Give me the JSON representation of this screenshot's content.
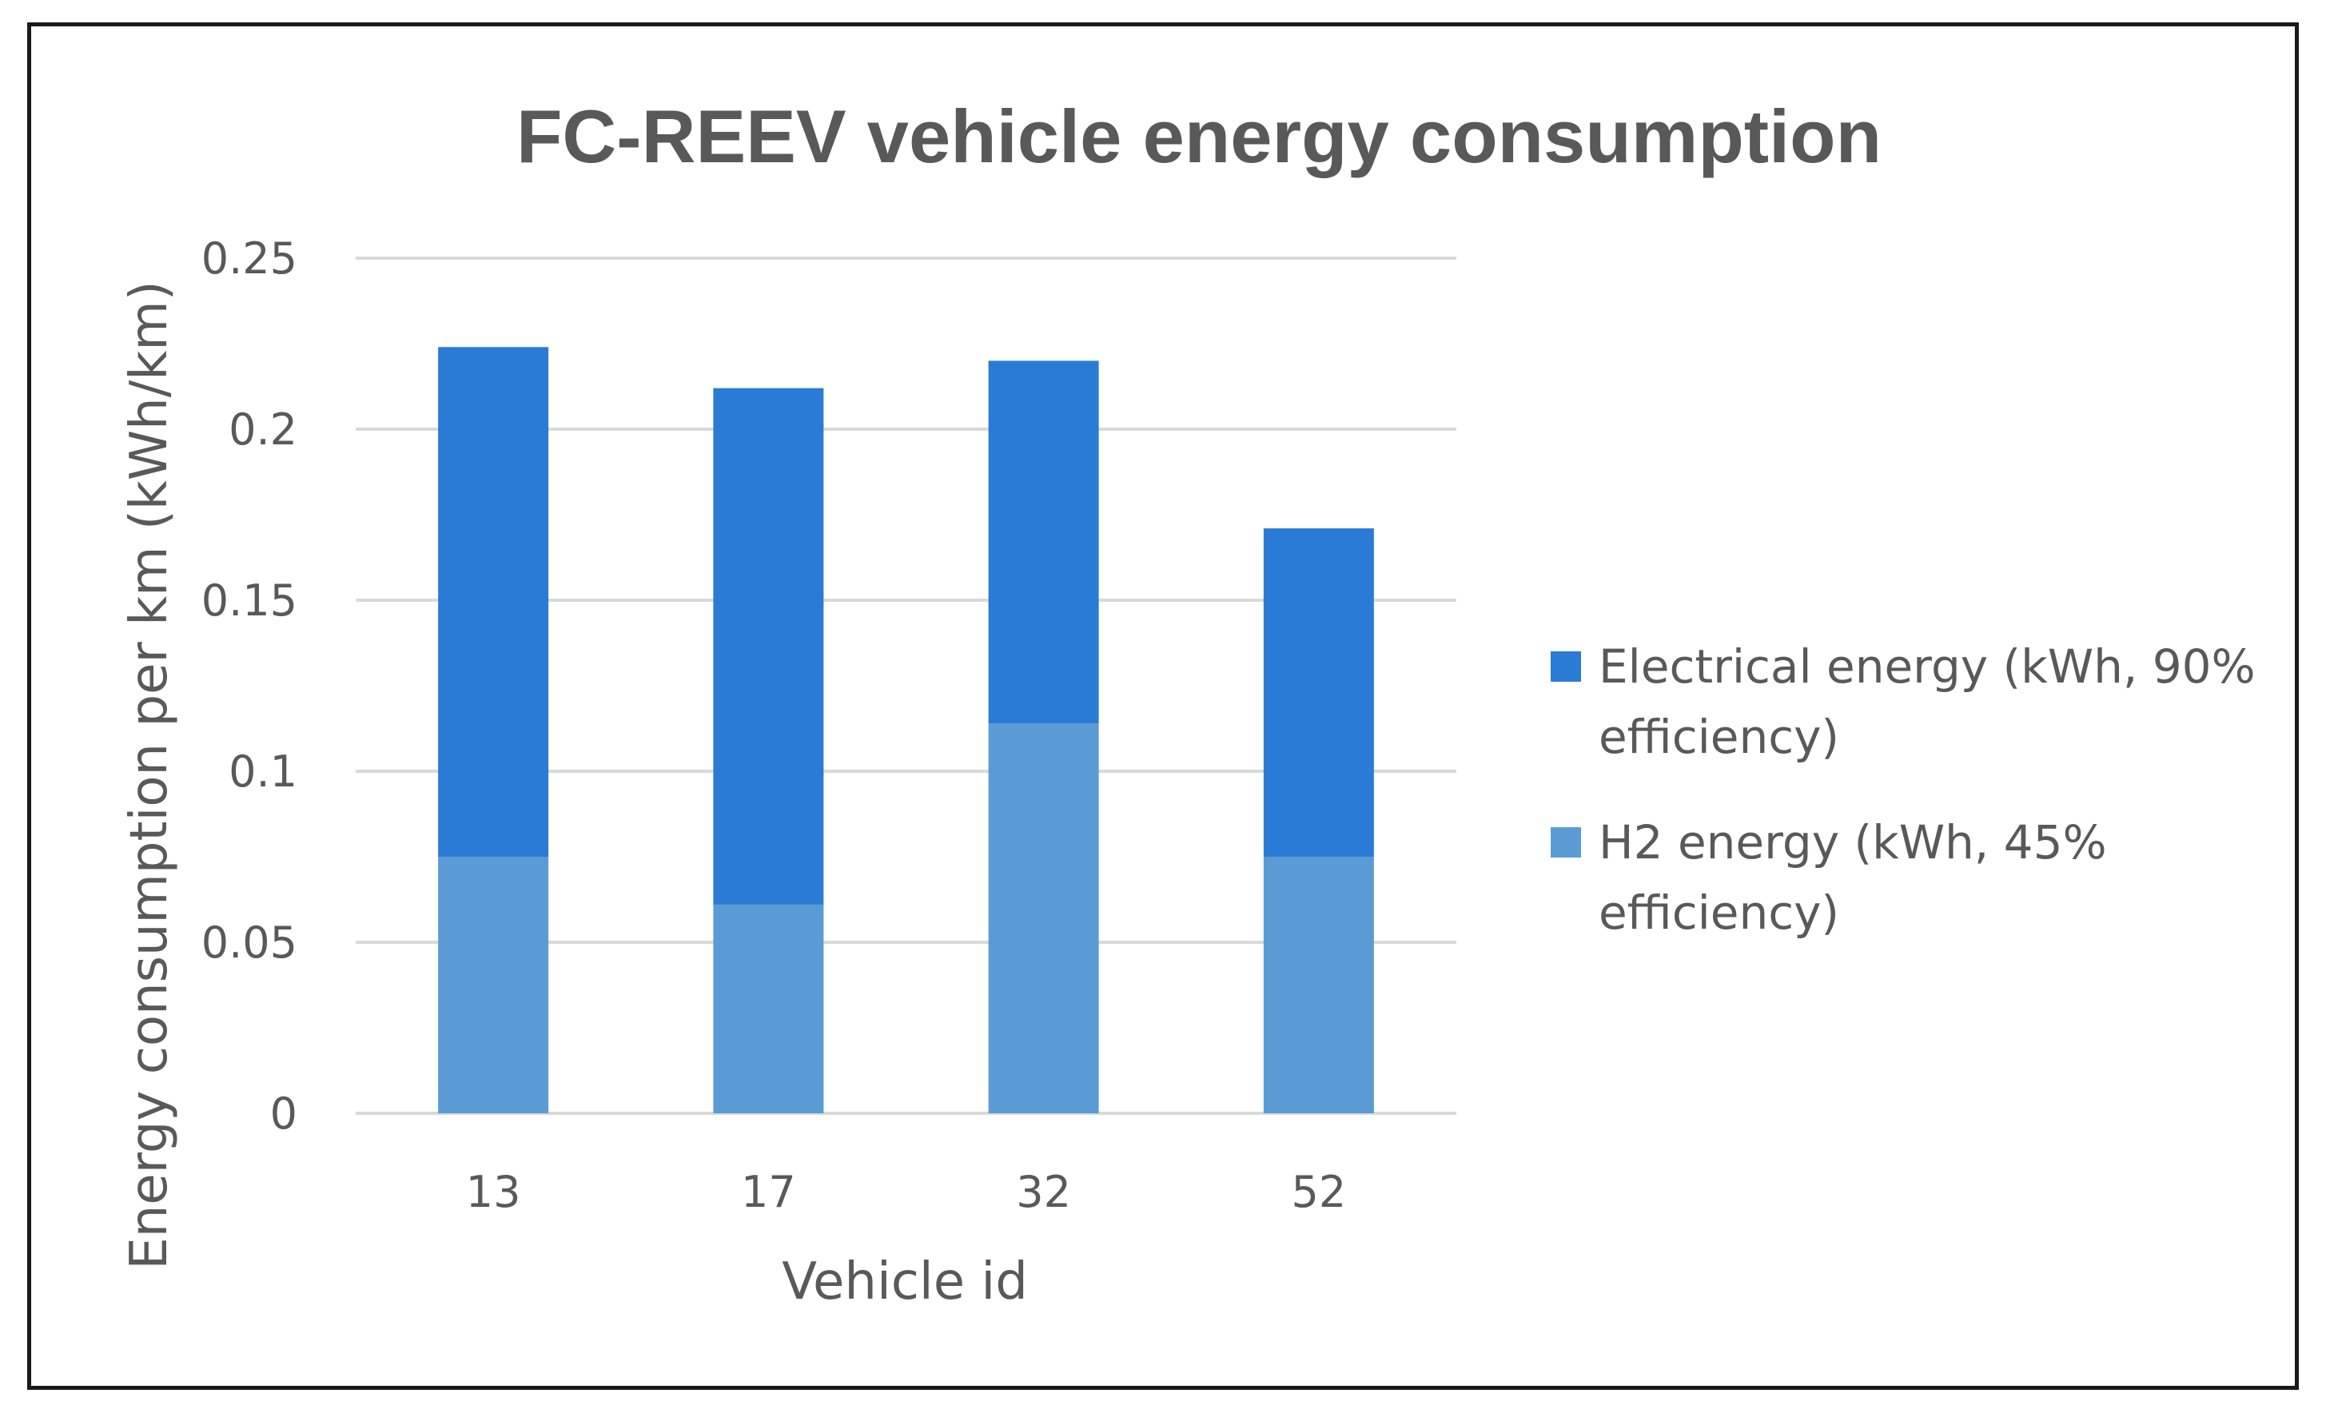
{
  "chart_data": {
    "type": "bar",
    "stacked": true,
    "title": "FC-REEV vehicle energy consumption",
    "xlabel": "Vehicle id",
    "ylabel": "Energy consumption per km (kWh/km)",
    "categories": [
      "13",
      "17",
      "32",
      "52"
    ],
    "series": [
      {
        "name": "H2 energy (kWh, 45% efficiency)",
        "name_lines": [
          "H2 energy (kWh, 45%",
          "efficiency)"
        ],
        "color": "#5b9bd5",
        "values": [
          0.075,
          0.061,
          0.114,
          0.075
        ]
      },
      {
        "name": "Electrical energy (kWh, 90% efficiency)",
        "name_lines": [
          "Electrical energy (kWh, 90%",
          "efficiency)"
        ],
        "color": "#2a7bd5",
        "values": [
          0.149,
          0.151,
          0.106,
          0.096
        ]
      }
    ],
    "ylim": [
      0,
      0.25
    ],
    "yticks": [
      0,
      0.05,
      0.1,
      0.15,
      0.2,
      0.25
    ],
    "ytick_labels": [
      "0",
      "0.05",
      "0.1",
      "0.15",
      "0.2",
      "0.25"
    ],
    "grid": true,
    "legend_position": "right"
  }
}
